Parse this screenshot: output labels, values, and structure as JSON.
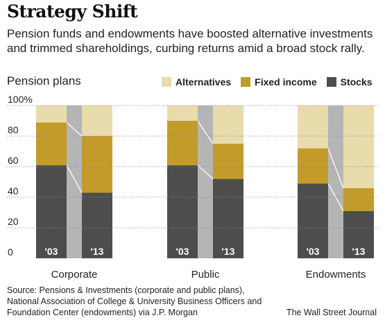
{
  "title": "Strategy Shift",
  "subtitle": "Pension funds and endowments have boosted alternative investments and trimmed shareholdings, curbing returns amid a broad stock rally.",
  "panel_label": "Pension plans",
  "source": "Source: Pensions & Investments (corporate and public plans), National Association of College & University Business Officers and Foundation Center (endowments) via J.P. Morgan",
  "credit": "The Wall Street Journal",
  "colors": {
    "alternatives": "#e8dcac",
    "fixed_income": "#c29b2b",
    "stocks": "#4d4d4d",
    "connector": "#b5b5b5",
    "grid": "#888888"
  },
  "chart_data": {
    "type": "bar",
    "stacked": true,
    "ylim": [
      0,
      100
    ],
    "yticks": [
      "0",
      "20",
      "40",
      "60",
      "80",
      "100%"
    ],
    "grid": "dotted horizontal",
    "legend_position": "top-right",
    "series": [
      {
        "name": "Alternatives",
        "key": "alternatives"
      },
      {
        "name": "Fixed income",
        "key": "fixed_income"
      },
      {
        "name": "Stocks",
        "key": "stocks"
      }
    ],
    "groups": [
      {
        "name": "Corporate",
        "bars": [
          {
            "label": "'03",
            "stocks": 61,
            "fixed_income": 28,
            "alternatives": 11
          },
          {
            "label": "'13",
            "stocks": 43,
            "fixed_income": 37,
            "alternatives": 20
          }
        ]
      },
      {
        "name": "Public",
        "bars": [
          {
            "label": "'03",
            "stocks": 61,
            "fixed_income": 29,
            "alternatives": 10
          },
          {
            "label": "'13",
            "stocks": 52,
            "fixed_income": 23,
            "alternatives": 25
          }
        ]
      },
      {
        "name": "Endowments",
        "bars": [
          {
            "label": "'03",
            "stocks": 49,
            "fixed_income": 23,
            "alternatives": 28
          },
          {
            "label": "'13",
            "stocks": 31,
            "fixed_income": 15,
            "alternatives": 54
          }
        ]
      }
    ]
  }
}
